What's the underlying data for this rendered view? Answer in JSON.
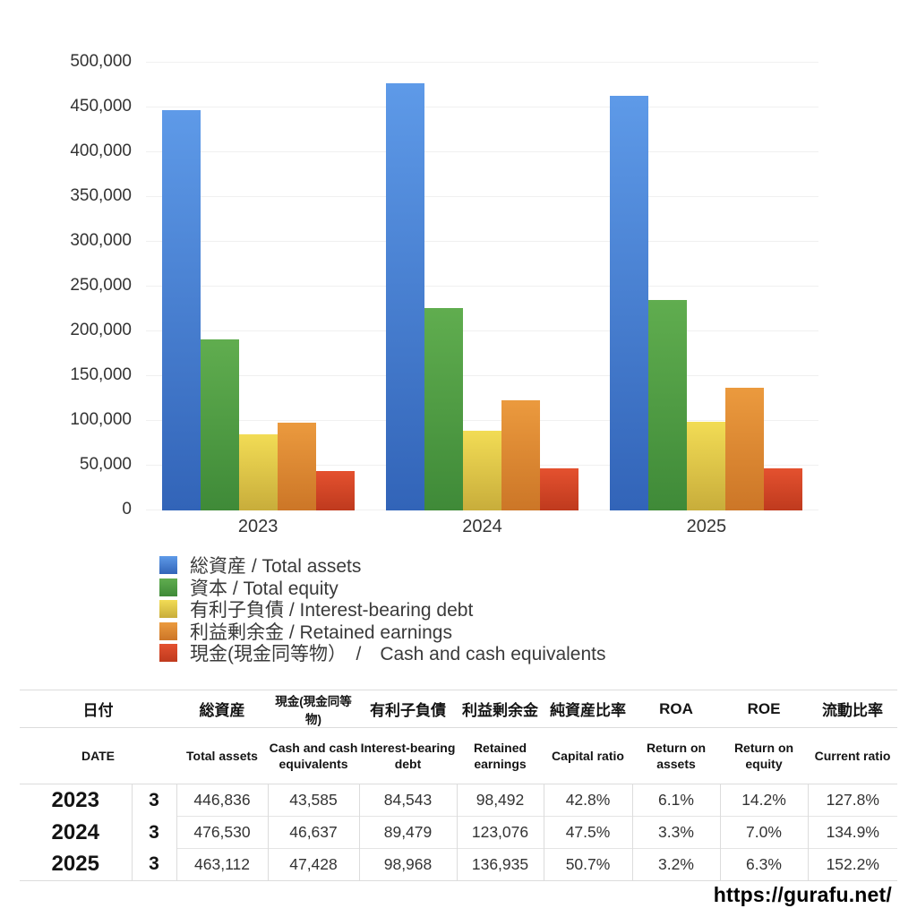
{
  "chart_data": {
    "type": "bar",
    "title": "",
    "xlabel": "",
    "ylabel": "",
    "categories": [
      "2023",
      "2024",
      "2025"
    ],
    "series": [
      {
        "key": "total-assets",
        "label": "総資産 / Total assets",
        "color_top": "#5e9ae8",
        "color_bottom": "#3264b8",
        "values": [
          446836,
          476530,
          463112
        ]
      },
      {
        "key": "total-equity",
        "label": "資本 / Total equity",
        "color_top": "#60ad4f",
        "color_bottom": "#3f8a38",
        "values": [
          191000,
          226000,
          235000
        ]
      },
      {
        "key": "interest-bearing-debt",
        "label": "有利子負債 / Interest-bearing debt",
        "color_top": "#f2dc55",
        "color_bottom": "#c8ad3b",
        "values": [
          84543,
          89479,
          98968
        ]
      },
      {
        "key": "retained-earnings",
        "label": "利益剰余金 / Retained earnings",
        "color_top": "#eb9a3e",
        "color_bottom": "#cc7627",
        "values": [
          98492,
          123076,
          136935
        ]
      },
      {
        "key": "cash",
        "label": "現金(現金同等物）　/　Cash and cash equivalents",
        "color_top": "#e4512f",
        "color_bottom": "#bf3a1e",
        "values": [
          43585,
          46637,
          47428
        ]
      }
    ],
    "ylim": [
      0,
      500000
    ],
    "yticks": [
      0,
      50000,
      100000,
      150000,
      200000,
      250000,
      300000,
      350000,
      400000,
      450000,
      500000
    ],
    "grid": "horizontal",
    "legend_position": "bottom-left"
  },
  "table": {
    "headers_ja": [
      "日付",
      "総資産",
      "現金(現金同等物)",
      "有利子負債",
      "利益剰余金",
      "純資産比率",
      "ROA",
      "ROE",
      "流動比率"
    ],
    "headers_en": [
      "DATE",
      "Total assets",
      "Cash and cash equivalents",
      "Interest-bearing debt",
      "Retained earnings",
      "Capital ratio",
      "Return on assets",
      "Return on equity",
      "Current ratio"
    ],
    "rows": [
      {
        "year": "2023",
        "month": "3",
        "values": [
          "446,836",
          "43,585",
          "84,543",
          "98,492",
          "42.8%",
          "6.1%",
          "14.2%",
          "127.8%"
        ]
      },
      {
        "year": "2024",
        "month": "3",
        "values": [
          "476,530",
          "46,637",
          "89,479",
          "123,076",
          "47.5%",
          "3.3%",
          "7.0%",
          "134.9%"
        ]
      },
      {
        "year": "2025",
        "month": "3",
        "values": [
          "463,112",
          "47,428",
          "98,968",
          "136,935",
          "50.7%",
          "3.2%",
          "6.3%",
          "152.2%"
        ]
      }
    ]
  },
  "footer": {
    "url": "https://gurafu.net/"
  }
}
